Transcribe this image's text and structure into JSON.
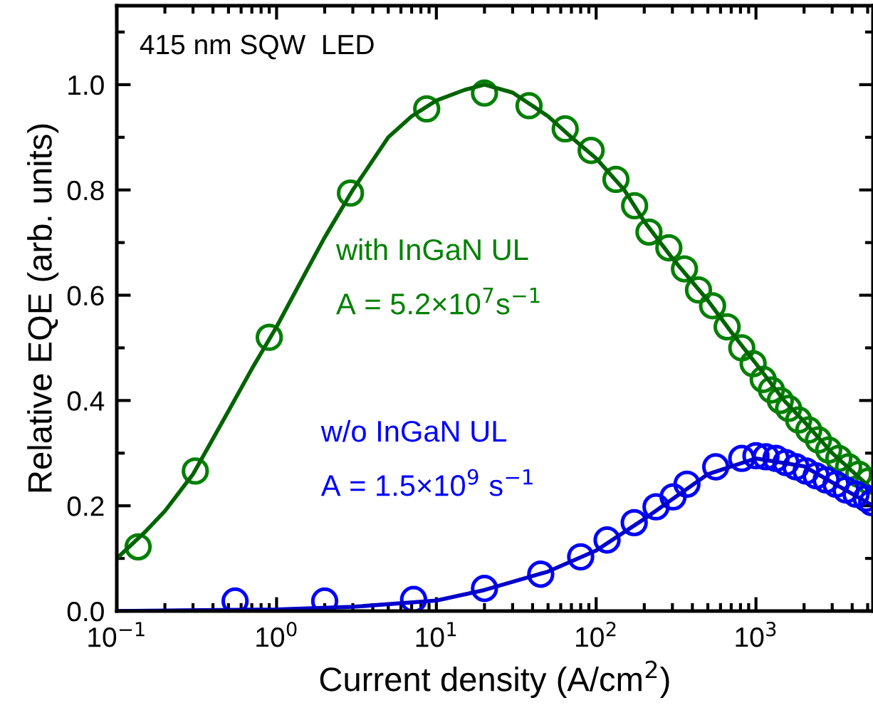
{
  "chart_data": {
    "type": "scatter",
    "xlabel": "Current density (A/cm$^{2}$)",
    "ylabel": "Relative EQE (arb. units)",
    "log": "x",
    "xlim": [
      0.1,
      5400
    ],
    "xticks": [
      {
        "value": 0.1,
        "label": "10$^{−1}$"
      },
      {
        "value": 1,
        "label": "10$^{0}$"
      },
      {
        "value": 10,
        "label": "10$^{1}$"
      },
      {
        "value": 100,
        "label": "10$^{2}$"
      },
      {
        "value": 1000,
        "label": "10$^{3}$"
      }
    ],
    "ylim": [
      0,
      1.15
    ],
    "yticks": [
      {
        "value": 0,
        "label": "0.0"
      },
      0.2,
      0.4,
      0.6,
      0.8,
      {
        "value": 1,
        "label": "1.0"
      }
    ],
    "grid": false,
    "annotations": [
      "415 nm SQW  LED",
      "A = 5.2×10$^{7}$s$^{−1}$",
      "A = 1.5×10$^{9}$ s$^{−1}$"
    ],
    "series": [
      {
        "name": "with InGaN UL",
        "marker": "circle",
        "color": "#008000",
        "x": [
          0.136,
          0.31,
          0.9,
          2.9,
          8.7,
          20,
          38,
          64,
          93,
          133,
          174,
          214,
          285,
          357,
          437,
          535,
          660,
          815,
          960,
          1110,
          1250,
          1420,
          1600,
          1850,
          2140,
          2460,
          2850,
          3300,
          3800,
          4400,
          5070
        ],
        "values": [
          0.122,
          0.266,
          0.52,
          0.794,
          0.954,
          0.984,
          0.96,
          0.916,
          0.875,
          0.82,
          0.77,
          0.72,
          0.69,
          0.65,
          0.61,
          0.58,
          0.54,
          0.5,
          0.47,
          0.44,
          0.42,
          0.4,
          0.385,
          0.363,
          0.344,
          0.325,
          0.306,
          0.29,
          0.274,
          0.26,
          0.247
        ]
      },
      {
        "type": "line",
        "marker": "none",
        "color": "#006400",
        "x": [
          0.1,
          0.15,
          0.2,
          0.3,
          0.5,
          0.7,
          1,
          1.5,
          2,
          3,
          5,
          7,
          10,
          15,
          20,
          30,
          50,
          70,
          100,
          150,
          200,
          300,
          500,
          700,
          1000,
          1500,
          2000,
          3000,
          5400
        ],
        "values": [
          0.1,
          0.15,
          0.19,
          0.26,
          0.38,
          0.46,
          0.54,
          0.64,
          0.71,
          0.8,
          0.9,
          0.94,
          0.97,
          0.99,
          1.0,
          0.985,
          0.94,
          0.9,
          0.86,
          0.8,
          0.74,
          0.67,
          0.59,
          0.53,
          0.47,
          0.4,
          0.36,
          0.3,
          0.23
        ]
      },
      {
        "name": "w/o InGaN UL",
        "marker": "circle",
        "color": "#0000ff",
        "x": [
          0.55,
          2.0,
          7.2,
          20,
          45,
          80,
          117,
          173,
          237,
          303,
          370,
          560,
          815,
          1000,
          1155,
          1335,
          1540,
          1780,
          2060,
          2380,
          2750,
          3170,
          3660,
          4230,
          4900,
          5300
        ],
        "values": [
          0.019,
          0.019,
          0.022,
          0.043,
          0.07,
          0.103,
          0.135,
          0.168,
          0.198,
          0.217,
          0.241,
          0.274,
          0.29,
          0.295,
          0.293,
          0.29,
          0.282,
          0.274,
          0.266,
          0.257,
          0.249,
          0.241,
          0.23,
          0.222,
          0.214,
          0.206
        ]
      },
      {
        "type": "line",
        "marker": "none",
        "color": "#0000cc",
        "x": [
          0.1,
          1,
          3,
          10,
          20,
          50,
          100,
          200,
          500,
          1000,
          2000,
          5400
        ],
        "values": [
          0.0,
          0.003,
          0.008,
          0.02,
          0.04,
          0.075,
          0.115,
          0.175,
          0.26,
          0.29,
          0.275,
          0.2
        ]
      }
    ]
  }
}
